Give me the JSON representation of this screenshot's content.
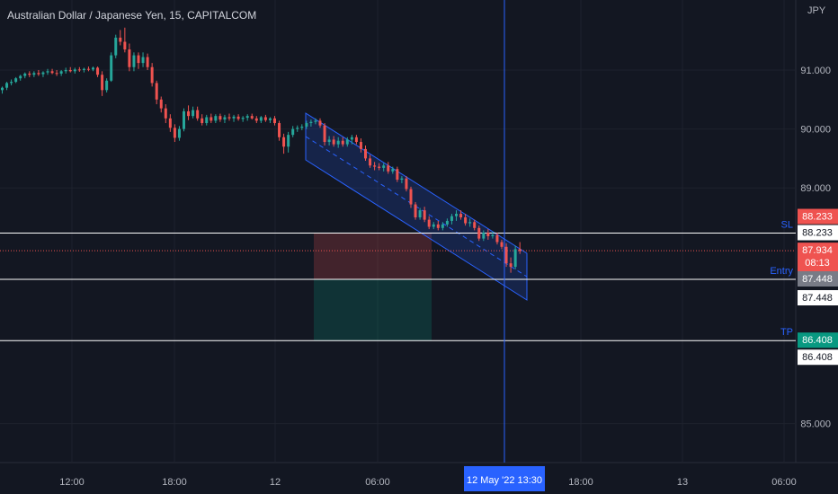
{
  "header": {
    "title": "Australian Dollar / Japanese Yen, 15, CAPITALCOM",
    "currency": "JPY"
  },
  "colors": {
    "background": "#131722",
    "up": "#26a69a",
    "down": "#ef5350",
    "grid": "#1e222d",
    "accent": "#2962ff",
    "line": "#ffffff"
  },
  "chart_data": {
    "type": "candlestick",
    "y_ticks": [
      "91.000",
      "90.000",
      "89.000",
      "85.000"
    ],
    "x_ticks": [
      "12:00",
      "18:00",
      "12",
      "06:00",
      "18:00",
      "13",
      "06:00"
    ],
    "crosshair_time_label": "12 May '22   13:30",
    "levels": [
      {
        "name": "SL",
        "price": 88.233,
        "label": "88.233",
        "color": "#ef5350"
      },
      {
        "name": "Entry",
        "price": 87.448,
        "label": "87.448",
        "color": "#787b86"
      },
      {
        "name": "TP",
        "price": 86.408,
        "label": "86.408",
        "color": "#089981"
      }
    ],
    "current_price": {
      "label": "87.934",
      "countdown": "08:13",
      "color": "#ef5350"
    },
    "series": [
      {
        "o": 90.66,
        "h": 90.72,
        "l": 90.6,
        "c": 90.7
      },
      {
        "o": 90.7,
        "h": 90.8,
        "l": 90.66,
        "c": 90.78
      },
      {
        "o": 90.78,
        "h": 90.84,
        "l": 90.74,
        "c": 90.8
      },
      {
        "o": 90.8,
        "h": 90.88,
        "l": 90.78,
        "c": 90.86
      },
      {
        "o": 90.86,
        "h": 90.92,
        "l": 90.82,
        "c": 90.9
      },
      {
        "o": 90.9,
        "h": 90.96,
        "l": 90.86,
        "c": 90.94
      },
      {
        "o": 90.94,
        "h": 90.98,
        "l": 90.88,
        "c": 90.92
      },
      {
        "o": 90.92,
        "h": 90.98,
        "l": 90.88,
        "c": 90.95
      },
      {
        "o": 90.95,
        "h": 91.0,
        "l": 90.9,
        "c": 90.93
      },
      {
        "o": 90.93,
        "h": 90.98,
        "l": 90.88,
        "c": 90.96
      },
      {
        "o": 90.96,
        "h": 91.02,
        "l": 90.92,
        "c": 90.98
      },
      {
        "o": 90.98,
        "h": 91.02,
        "l": 90.93,
        "c": 90.95
      },
      {
        "o": 90.95,
        "h": 91.0,
        "l": 90.9,
        "c": 90.94
      },
      {
        "o": 90.94,
        "h": 91.0,
        "l": 90.9,
        "c": 90.98
      },
      {
        "o": 90.98,
        "h": 91.04,
        "l": 90.94,
        "c": 91.0
      },
      {
        "o": 91.0,
        "h": 91.05,
        "l": 90.96,
        "c": 90.98
      },
      {
        "o": 90.98,
        "h": 91.04,
        "l": 90.94,
        "c": 91.01
      },
      {
        "o": 91.01,
        "h": 91.05,
        "l": 90.97,
        "c": 91.0
      },
      {
        "o": 91.0,
        "h": 91.04,
        "l": 90.96,
        "c": 91.02
      },
      {
        "o": 91.02,
        "h": 91.06,
        "l": 90.98,
        "c": 91.01
      },
      {
        "o": 91.01,
        "h": 91.06,
        "l": 90.98,
        "c": 91.04
      },
      {
        "o": 91.04,
        "h": 91.06,
        "l": 90.88,
        "c": 90.92
      },
      {
        "o": 90.92,
        "h": 90.98,
        "l": 90.56,
        "c": 90.66
      },
      {
        "o": 90.66,
        "h": 90.86,
        "l": 90.62,
        "c": 90.82
      },
      {
        "o": 90.82,
        "h": 91.3,
        "l": 90.8,
        "c": 91.25
      },
      {
        "o": 91.25,
        "h": 91.6,
        "l": 91.2,
        "c": 91.55
      },
      {
        "o": 91.55,
        "h": 91.68,
        "l": 91.42,
        "c": 91.48
      },
      {
        "o": 91.48,
        "h": 91.72,
        "l": 91.3,
        "c": 91.35
      },
      {
        "o": 91.35,
        "h": 91.45,
        "l": 90.98,
        "c": 91.05
      },
      {
        "o": 91.05,
        "h": 91.3,
        "l": 90.98,
        "c": 91.25
      },
      {
        "o": 91.25,
        "h": 91.3,
        "l": 91.02,
        "c": 91.12
      },
      {
        "o": 91.12,
        "h": 91.3,
        "l": 91.05,
        "c": 91.22
      },
      {
        "o": 91.22,
        "h": 91.28,
        "l": 91.0,
        "c": 91.05
      },
      {
        "o": 91.05,
        "h": 91.12,
        "l": 90.72,
        "c": 90.78
      },
      {
        "o": 90.78,
        "h": 90.82,
        "l": 90.42,
        "c": 90.5
      },
      {
        "o": 90.5,
        "h": 90.55,
        "l": 90.28,
        "c": 90.35
      },
      {
        "o": 90.35,
        "h": 90.42,
        "l": 90.1,
        "c": 90.18
      },
      {
        "o": 90.18,
        "h": 90.25,
        "l": 89.95,
        "c": 90.02
      },
      {
        "o": 90.02,
        "h": 90.08,
        "l": 89.78,
        "c": 89.85
      },
      {
        "o": 89.85,
        "h": 90.05,
        "l": 89.8,
        "c": 90.0
      },
      {
        "o": 90.0,
        "h": 90.35,
        "l": 89.96,
        "c": 90.3
      },
      {
        "o": 90.3,
        "h": 90.4,
        "l": 90.15,
        "c": 90.22
      },
      {
        "o": 90.22,
        "h": 90.38,
        "l": 90.18,
        "c": 90.32
      },
      {
        "o": 90.32,
        "h": 90.38,
        "l": 90.14,
        "c": 90.18
      },
      {
        "o": 90.18,
        "h": 90.25,
        "l": 90.06,
        "c": 90.1
      },
      {
        "o": 90.1,
        "h": 90.24,
        "l": 90.06,
        "c": 90.2
      },
      {
        "o": 90.2,
        "h": 90.26,
        "l": 90.1,
        "c": 90.14
      },
      {
        "o": 90.14,
        "h": 90.25,
        "l": 90.1,
        "c": 90.22
      },
      {
        "o": 90.22,
        "h": 90.26,
        "l": 90.12,
        "c": 90.16
      },
      {
        "o": 90.16,
        "h": 90.24,
        "l": 90.1,
        "c": 90.2
      },
      {
        "o": 90.2,
        "h": 90.26,
        "l": 90.14,
        "c": 90.18
      },
      {
        "o": 90.18,
        "h": 90.24,
        "l": 90.12,
        "c": 90.21
      },
      {
        "o": 90.21,
        "h": 90.25,
        "l": 90.14,
        "c": 90.17
      },
      {
        "o": 90.17,
        "h": 90.22,
        "l": 90.12,
        "c": 90.19
      },
      {
        "o": 90.19,
        "h": 90.25,
        "l": 90.14,
        "c": 90.22
      },
      {
        "o": 90.22,
        "h": 90.26,
        "l": 90.16,
        "c": 90.18
      },
      {
        "o": 90.18,
        "h": 90.22,
        "l": 90.1,
        "c": 90.14
      },
      {
        "o": 90.14,
        "h": 90.22,
        "l": 90.1,
        "c": 90.2
      },
      {
        "o": 90.2,
        "h": 90.24,
        "l": 90.12,
        "c": 90.15
      },
      {
        "o": 90.15,
        "h": 90.2,
        "l": 90.1,
        "c": 90.18
      },
      {
        "o": 90.18,
        "h": 90.22,
        "l": 90.06,
        "c": 90.1
      },
      {
        "o": 90.1,
        "h": 90.14,
        "l": 89.8,
        "c": 89.86
      },
      {
        "o": 89.86,
        "h": 89.92,
        "l": 89.58,
        "c": 89.7
      },
      {
        "o": 89.7,
        "h": 89.95,
        "l": 89.6,
        "c": 89.9
      },
      {
        "o": 89.9,
        "h": 90.05,
        "l": 89.86,
        "c": 90.0
      },
      {
        "o": 90.0,
        "h": 90.06,
        "l": 89.95,
        "c": 90.02
      },
      {
        "o": 90.02,
        "h": 90.08,
        "l": 89.98,
        "c": 90.04
      },
      {
        "o": 90.04,
        "h": 90.14,
        "l": 90.0,
        "c": 90.1
      },
      {
        "o": 90.1,
        "h": 90.16,
        "l": 90.04,
        "c": 90.12
      },
      {
        "o": 90.12,
        "h": 90.18,
        "l": 90.08,
        "c": 90.14
      },
      {
        "o": 90.14,
        "h": 90.18,
        "l": 90.02,
        "c": 90.06
      },
      {
        "o": 90.06,
        "h": 90.1,
        "l": 89.72,
        "c": 89.78
      },
      {
        "o": 89.78,
        "h": 89.88,
        "l": 89.72,
        "c": 89.82
      },
      {
        "o": 89.82,
        "h": 89.88,
        "l": 89.7,
        "c": 89.74
      },
      {
        "o": 89.74,
        "h": 89.86,
        "l": 89.68,
        "c": 89.8
      },
      {
        "o": 89.8,
        "h": 89.86,
        "l": 89.7,
        "c": 89.74
      },
      {
        "o": 89.74,
        "h": 89.86,
        "l": 89.7,
        "c": 89.82
      },
      {
        "o": 89.82,
        "h": 89.9,
        "l": 89.74,
        "c": 89.86
      },
      {
        "o": 89.86,
        "h": 89.9,
        "l": 89.74,
        "c": 89.78
      },
      {
        "o": 89.78,
        "h": 89.84,
        "l": 89.6,
        "c": 89.66
      },
      {
        "o": 89.66,
        "h": 89.72,
        "l": 89.46,
        "c": 89.5
      },
      {
        "o": 89.5,
        "h": 89.56,
        "l": 89.34,
        "c": 89.38
      },
      {
        "o": 89.38,
        "h": 89.44,
        "l": 89.3,
        "c": 89.36
      },
      {
        "o": 89.36,
        "h": 89.42,
        "l": 89.3,
        "c": 89.34
      },
      {
        "o": 89.34,
        "h": 89.42,
        "l": 89.28,
        "c": 89.38
      },
      {
        "o": 89.38,
        "h": 89.44,
        "l": 89.24,
        "c": 89.28
      },
      {
        "o": 89.28,
        "h": 89.36,
        "l": 89.24,
        "c": 89.32
      },
      {
        "o": 89.32,
        "h": 89.36,
        "l": 89.1,
        "c": 89.14
      },
      {
        "o": 89.14,
        "h": 89.2,
        "l": 89.08,
        "c": 89.16
      },
      {
        "o": 89.16,
        "h": 89.2,
        "l": 88.94,
        "c": 88.98
      },
      {
        "o": 88.98,
        "h": 89.02,
        "l": 88.66,
        "c": 88.72
      },
      {
        "o": 88.72,
        "h": 88.76,
        "l": 88.46,
        "c": 88.5
      },
      {
        "o": 88.5,
        "h": 88.66,
        "l": 88.46,
        "c": 88.62
      },
      {
        "o": 88.62,
        "h": 88.68,
        "l": 88.42,
        "c": 88.46
      },
      {
        "o": 88.46,
        "h": 88.52,
        "l": 88.3,
        "c": 88.34
      },
      {
        "o": 88.34,
        "h": 88.42,
        "l": 88.3,
        "c": 88.38
      },
      {
        "o": 88.38,
        "h": 88.44,
        "l": 88.28,
        "c": 88.32
      },
      {
        "o": 88.32,
        "h": 88.42,
        "l": 88.28,
        "c": 88.38
      },
      {
        "o": 88.38,
        "h": 88.48,
        "l": 88.34,
        "c": 88.44
      },
      {
        "o": 88.44,
        "h": 88.56,
        "l": 88.38,
        "c": 88.52
      },
      {
        "o": 88.52,
        "h": 88.62,
        "l": 88.44,
        "c": 88.56
      },
      {
        "o": 88.56,
        "h": 88.62,
        "l": 88.46,
        "c": 88.5
      },
      {
        "o": 88.5,
        "h": 88.56,
        "l": 88.36,
        "c": 88.4
      },
      {
        "o": 88.4,
        "h": 88.48,
        "l": 88.34,
        "c": 88.42
      },
      {
        "o": 88.42,
        "h": 88.46,
        "l": 88.28,
        "c": 88.32
      },
      {
        "o": 88.32,
        "h": 88.36,
        "l": 88.1,
        "c": 88.14
      },
      {
        "o": 88.14,
        "h": 88.28,
        "l": 88.1,
        "c": 88.24
      },
      {
        "o": 88.24,
        "h": 88.3,
        "l": 88.12,
        "c": 88.18
      },
      {
        "o": 88.18,
        "h": 88.26,
        "l": 88.14,
        "c": 88.2
      },
      {
        "o": 88.2,
        "h": 88.24,
        "l": 88.04,
        "c": 88.08
      },
      {
        "o": 88.08,
        "h": 88.12,
        "l": 87.96,
        "c": 88.0
      },
      {
        "o": 88.0,
        "h": 88.06,
        "l": 87.66,
        "c": 87.72
      },
      {
        "o": 87.72,
        "h": 87.82,
        "l": 87.56,
        "c": 87.66
      },
      {
        "o": 87.66,
        "h": 88.02,
        "l": 87.62,
        "c": 87.96
      },
      {
        "o": 87.96,
        "h": 88.08,
        "l": 87.88,
        "c": 87.93
      }
    ]
  }
}
